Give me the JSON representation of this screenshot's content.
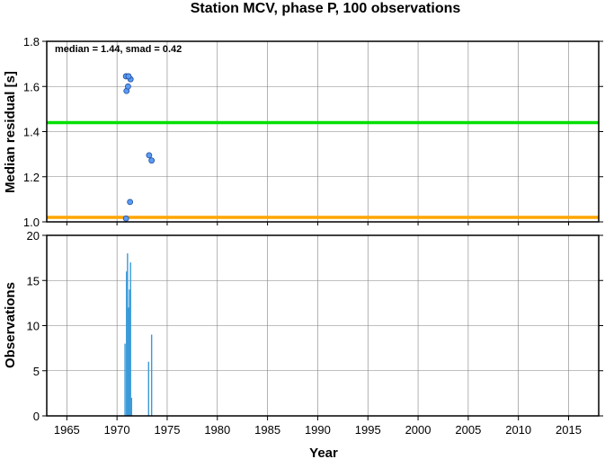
{
  "chart_data": {
    "title": "Station MCV, phase P, 100 observations",
    "xlabel": "Year",
    "xlim": [
      1963,
      2018
    ],
    "xticks": [
      1965,
      1970,
      1975,
      1980,
      1985,
      1990,
      1995,
      2000,
      2005,
      2010,
      2015
    ],
    "grid": true,
    "panels": [
      {
        "type": "scatter",
        "ylabel": "Median residual [s]",
        "ylim": [
          1.0,
          1.8
        ],
        "yticks": [
          "1.0",
          "1.2",
          "1.4",
          "1.6",
          "1.8"
        ],
        "annotation": "median = 1.44, smad = 0.42",
        "hlines": [
          {
            "value": 1.44,
            "color": "#00e000"
          },
          {
            "value": 1.02,
            "color": "#ffa500"
          }
        ],
        "points": {
          "color": "#5b9bf5",
          "x": [
            1970.9,
            1970.95,
            1971.1,
            1971.35,
            1971.15,
            1973.2,
            1973.45,
            1971.3,
            1970.9
          ],
          "y": [
            1.645,
            1.58,
            1.6,
            1.632,
            1.645,
            1.295,
            1.272,
            1.088,
            1.015
          ]
        }
      },
      {
        "type": "bar",
        "ylabel": "Observations",
        "ylim": [
          0,
          20
        ],
        "yticks": [
          "0",
          "5",
          "10",
          "15",
          "20"
        ],
        "color": "#3a9ad9",
        "x": [
          1970.8,
          1970.95,
          1971.05,
          1971.15,
          1971.25,
          1971.35,
          1971.45,
          1973.15,
          1973.45
        ],
        "values": [
          8,
          16,
          18,
          12,
          14,
          17,
          2,
          6,
          9
        ]
      }
    ]
  }
}
